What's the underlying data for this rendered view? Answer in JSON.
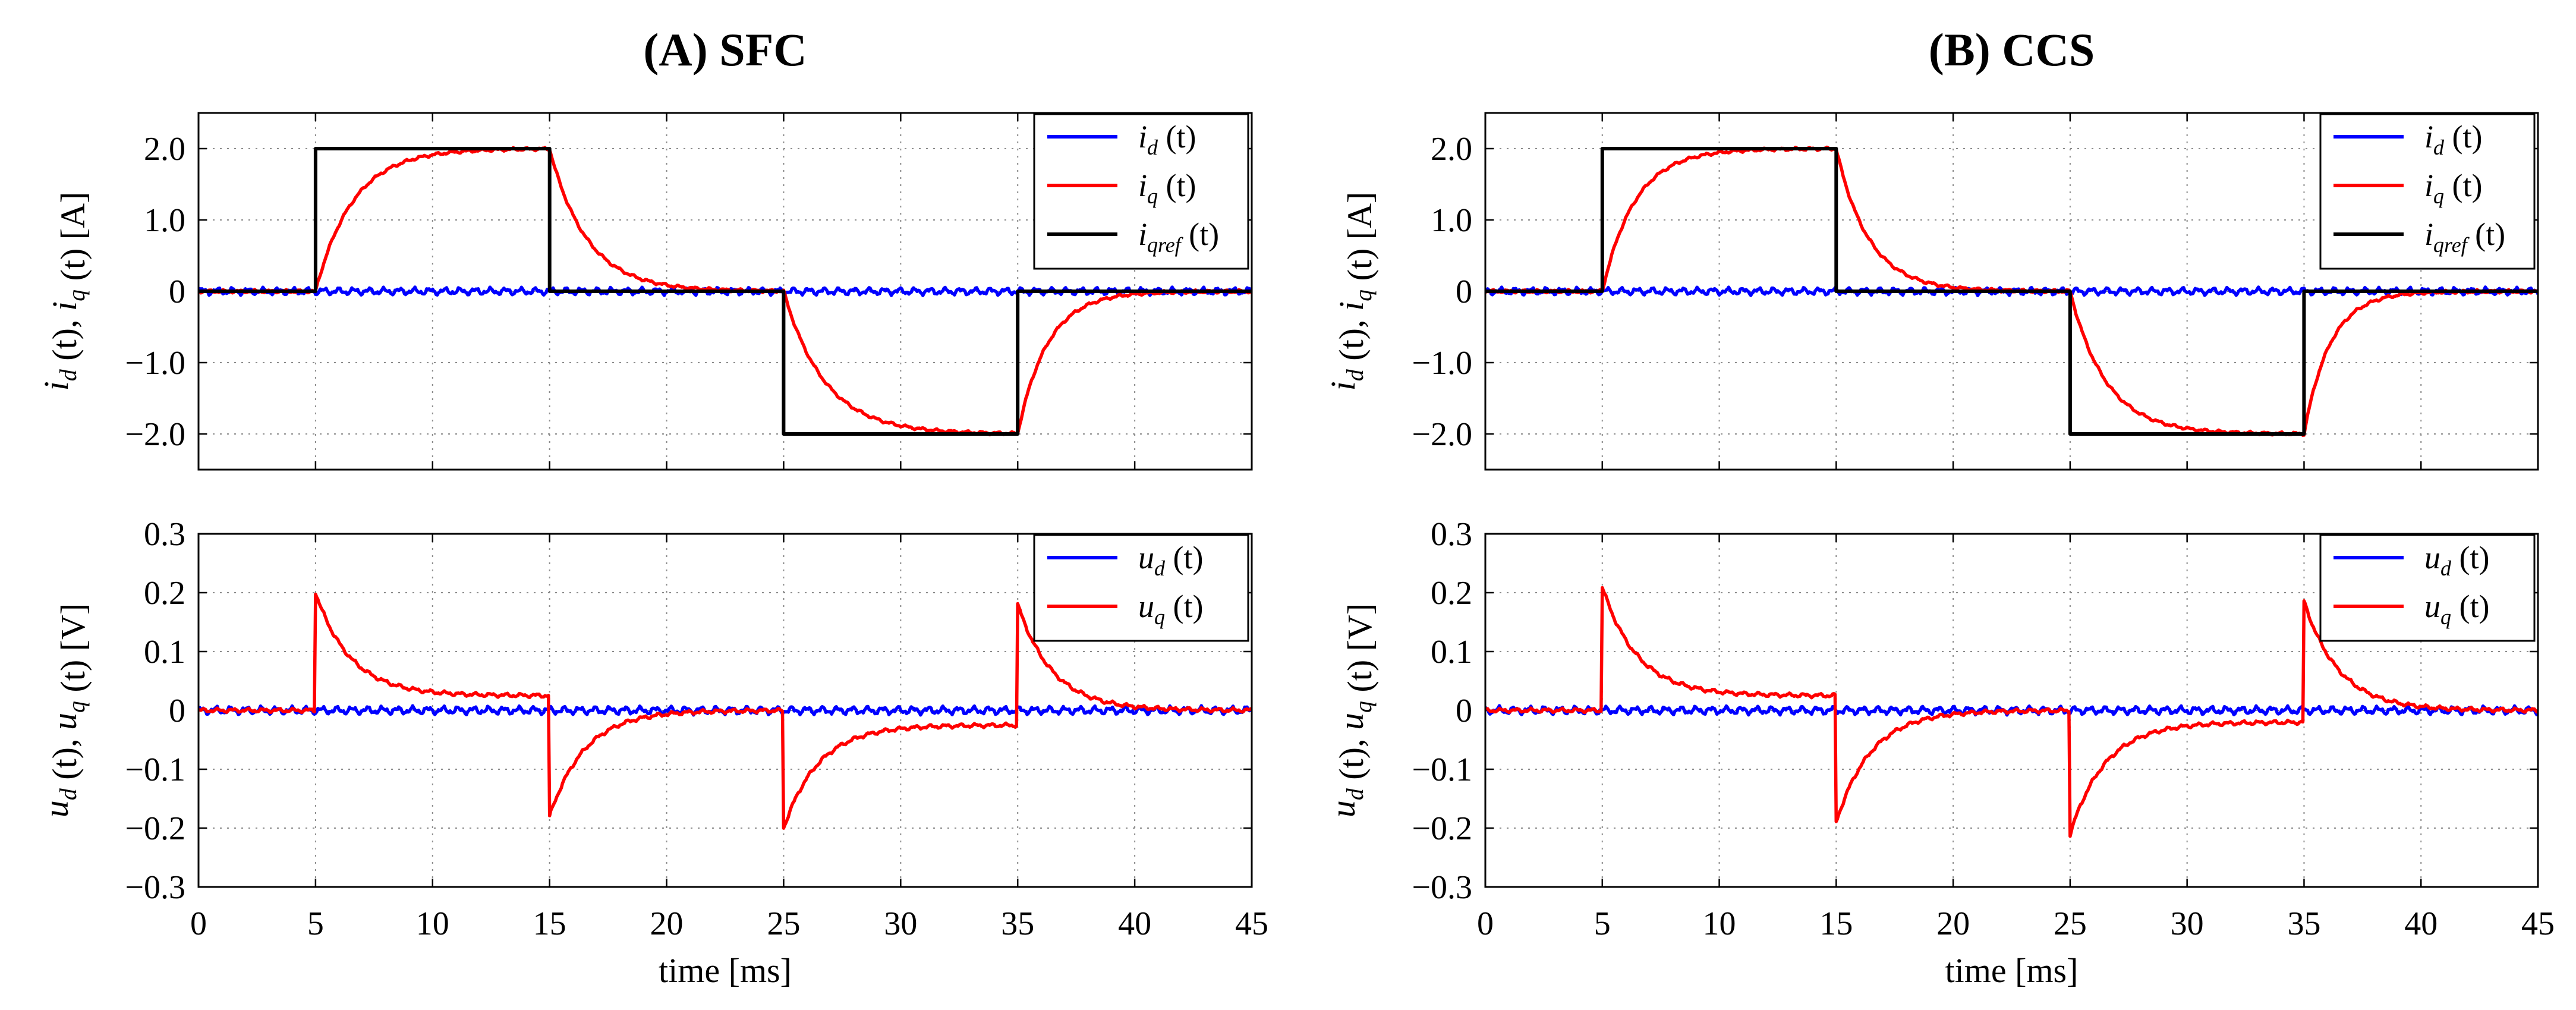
{
  "figure": {
    "xlabel": "time [ms]",
    "xticks": [
      "0",
      "5",
      "10",
      "15",
      "20",
      "25",
      "30",
      "35",
      "40",
      "45"
    ],
    "colors": {
      "blue": "#0000ff",
      "red": "#ff0000",
      "black": "#000000",
      "grid": "#8c8c8c"
    }
  },
  "chart_data": [
    {
      "id": "A-current",
      "panel": "A",
      "type": "line",
      "title": "(A) SFC",
      "ylabel": "i_d (t), i_q (t) [A]",
      "xlim": [
        0,
        45
      ],
      "ylim": [
        -2.5,
        2.5
      ],
      "yticks": [
        "−2.0",
        "−1.0",
        "0",
        "1.0",
        "2.0"
      ],
      "ytick_values": [
        -2,
        -1,
        0,
        1,
        2
      ],
      "xlabel": "",
      "series": [
        {
          "name": "i_d (t)",
          "base": "i",
          "sub": "d",
          "color": "#0000ff",
          "kind": "noise",
          "amp": 0.06
        },
        {
          "name": "i_q (t)",
          "base": "i",
          "sub": "q",
          "color": "#ff0000",
          "kind": "current",
          "tau": 1.6
        },
        {
          "name": "i_qref (t)",
          "base": "i",
          "sub": "qref",
          "color": "#000000",
          "kind": "reference",
          "x": [
            0,
            5,
            5,
            15,
            15,
            25,
            25,
            35,
            35,
            45
          ],
          "y": [
            0,
            0,
            2,
            2,
            0,
            0,
            -2,
            -2,
            0,
            0
          ]
        }
      ]
    },
    {
      "id": "A-voltage",
      "panel": "A",
      "type": "line",
      "title": "",
      "ylabel": "u_d (t), u_q (t) [V]",
      "xlim": [
        0,
        45
      ],
      "ylim": [
        -0.3,
        0.3
      ],
      "yticks": [
        "−0.3",
        "−0.2",
        "−0.1",
        "0",
        "0.1",
        "0.2",
        "0.3"
      ],
      "ytick_values": [
        -0.3,
        -0.2,
        -0.1,
        0,
        0.1,
        0.2,
        0.3
      ],
      "xlabel": "time [ms]",
      "series": [
        {
          "name": "u_d (t)",
          "base": "u",
          "sub": "d",
          "color": "#0000ff",
          "kind": "noise",
          "amp": 0.008
        },
        {
          "name": "u_q (t)",
          "base": "u",
          "sub": "q",
          "color": "#ff0000",
          "kind": "voltage",
          "spikes": [
            0.2,
            -0.18,
            -0.2,
            0.18
          ],
          "settle": [
            0.025,
            0.0,
            -0.025,
            0.0
          ]
        }
      ]
    },
    {
      "id": "B-current",
      "panel": "B",
      "type": "line",
      "title": "(B) CCS",
      "ylabel": "i_d (t), i_q (t) [A]",
      "xlim": [
        0,
        45
      ],
      "ylim": [
        -2.5,
        2.5
      ],
      "yticks": [
        "−2.0",
        "−1.0",
        "0",
        "1.0",
        "2.0"
      ],
      "ytick_values": [
        -2,
        -1,
        0,
        1,
        2
      ],
      "xlabel": "",
      "series": [
        {
          "name": "i_d (t)",
          "base": "i",
          "sub": "d",
          "color": "#0000ff",
          "kind": "noise",
          "amp": 0.06
        },
        {
          "name": "i_q (t)",
          "base": "i",
          "sub": "q",
          "color": "#ff0000",
          "kind": "current",
          "tau": 1.4
        },
        {
          "name": "i_qref (t)",
          "base": "i",
          "sub": "qref",
          "color": "#000000",
          "kind": "reference",
          "x": [
            0,
            5,
            5,
            15,
            15,
            25,
            25,
            35,
            35,
            45
          ],
          "y": [
            0,
            0,
            2,
            2,
            0,
            0,
            -2,
            -2,
            0,
            0
          ]
        }
      ]
    },
    {
      "id": "B-voltage",
      "panel": "B",
      "type": "line",
      "title": "",
      "ylabel": "u_d (t), u_q (t) [V]",
      "xlim": [
        0,
        45
      ],
      "ylim": [
        -0.3,
        0.3
      ],
      "yticks": [
        "−0.3",
        "−0.2",
        "−0.1",
        "0",
        "0.1",
        "0.2",
        "0.3"
      ],
      "ytick_values": [
        -0.3,
        -0.2,
        -0.1,
        0,
        0.1,
        0.2,
        0.3
      ],
      "xlabel": "time [ms]",
      "series": [
        {
          "name": "u_d (t)",
          "base": "u",
          "sub": "d",
          "color": "#0000ff",
          "kind": "noise",
          "amp": 0.008
        },
        {
          "name": "u_q (t)",
          "base": "u",
          "sub": "q",
          "color": "#ff0000",
          "kind": "voltage",
          "spikes": [
            0.21,
            -0.19,
            -0.21,
            0.185
          ],
          "settle": [
            0.025,
            0.0,
            -0.02,
            0.0
          ]
        }
      ]
    }
  ]
}
